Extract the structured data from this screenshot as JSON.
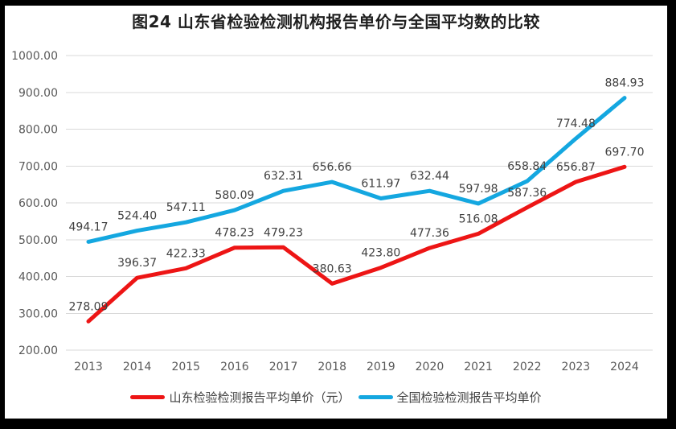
{
  "chart_data": {
    "type": "line",
    "title": "图24  山东省检验检测机构报告单价与全国平均数的比较",
    "x": [
      "2013",
      "2014",
      "2015",
      "2016",
      "2017",
      "2018",
      "2019",
      "2020",
      "2021",
      "2022",
      "2023",
      "2024"
    ],
    "series": [
      {
        "id": "shandong",
        "name": "山东检验检测报告平均单价（元）",
        "color": "#ed1515",
        "values": [
          278.09,
          396.37,
          422.33,
          478.23,
          479.23,
          380.63,
          423.8,
          477.36,
          516.08,
          587.36,
          656.87,
          697.7
        ]
      },
      {
        "id": "national",
        "name": "全国检验检测报告平均单价",
        "color": "#14a7e0",
        "values": [
          494.17,
          524.4,
          547.11,
          580.09,
          632.31,
          656.66,
          611.97,
          632.44,
          597.98,
          658.84,
          774.48,
          884.93
        ]
      }
    ],
    "ylim": [
      200,
      1000
    ],
    "yticks": [
      1000,
      900,
      800,
      700,
      600,
      500,
      400,
      300,
      200
    ],
    "ytick_format": "two-decimals",
    "grid": true,
    "grid_color": "#d9d9d9",
    "legend_position": "bottom",
    "data_labels": true,
    "label_color": "#404040",
    "tick_color": "#595959",
    "background": "#ffffff",
    "outer_border_color": "#000000"
  }
}
